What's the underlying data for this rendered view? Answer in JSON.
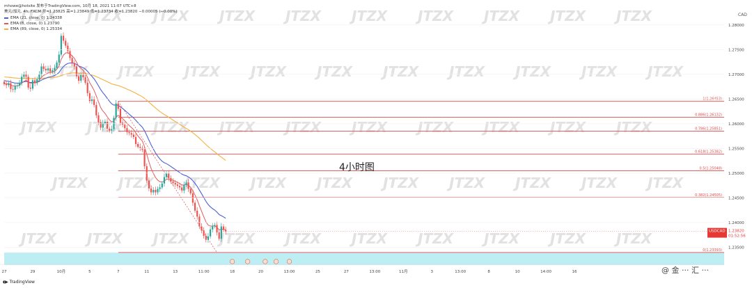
{
  "header": {
    "line1": "mhowe@hotsite 发布于TradingView.com, 10月 18, 2021 11:07 UTC+8",
    "line2": "美元/加元, 4h, FXCM 开=1.23825 高=1.23849 低=1.23734 收=1.23820 −0.00005 (−0.00%)",
    "ema21": "EMA (21, close, 0) 1.24338",
    "ema8": "EMA (8, close, 0) 1.23790",
    "ema89": "EMA (89, close, 0) 1.25334"
  },
  "colors": {
    "up": "#26a69a",
    "down": "#ef5350",
    "ema21": "#4a5fd8",
    "ema8": "#e05a5a",
    "ema89": "#f5b041",
    "fib": "#e04848",
    "band": "#bdeef3",
    "watermark": "#e2e2e2"
  },
  "chart_data": {
    "type": "candlestick",
    "annotation": "4小时图",
    "symbol_tag": "USDCAD",
    "last_price": "1.23820",
    "countdown": "01:52:56",
    "currency": "CAD",
    "ylim": [
      1.2335,
      1.2842
    ],
    "y_ticks": [
      1.28,
      1.275,
      1.27,
      1.265,
      1.26,
      1.255,
      1.25,
      1.245,
      1.24,
      1.235
    ],
    "y_tick_labels": [
      "1.28000",
      "1.27500",
      "1.27000",
      "1.26500",
      "1.26000",
      "1.25500",
      "1.25000",
      "1.24500",
      "1.24000",
      "1.23500"
    ],
    "x_labels": [
      {
        "i": 0,
        "label": "27"
      },
      {
        "i": 13,
        "label": "29"
      },
      {
        "i": 26,
        "label": "10月"
      },
      {
        "i": 39,
        "label": "5"
      },
      {
        "i": 52,
        "label": "7"
      },
      {
        "i": 65,
        "label": "11"
      },
      {
        "i": 78,
        "label": "13"
      },
      {
        "i": 91,
        "label": "11:00"
      },
      {
        "i": 104,
        "label": "18"
      },
      {
        "i": 117,
        "label": "20"
      },
      {
        "i": 130,
        "label": "13:00"
      },
      {
        "i": 143,
        "label": "25"
      },
      {
        "i": 156,
        "label": "27"
      },
      {
        "i": 169,
        "label": "13:00"
      },
      {
        "i": 182,
        "label": "11月"
      },
      {
        "i": 195,
        "label": "3"
      },
      {
        "i": 208,
        "label": "13:00"
      },
      {
        "i": 221,
        "label": "8"
      },
      {
        "i": 234,
        "label": "10"
      },
      {
        "i": 247,
        "label": "14:00"
      },
      {
        "i": 260,
        "label": "16"
      }
    ],
    "fib_levels": [
      {
        "level": "1",
        "price": 1.26453,
        "label": "1(1.26453)"
      },
      {
        "level": "0.886",
        "price": 1.26132,
        "label": "0.886(1.26132)"
      },
      {
        "level": "0.786",
        "price": 1.25851,
        "label": "0.786(1.25851)"
      },
      {
        "level": "0.618",
        "price": 1.25382,
        "label": "0.618(1.25382)"
      },
      {
        "level": "0.5",
        "price": 1.25048,
        "label": "0.5(1.25048)"
      },
      {
        "level": "0.382",
        "price": 1.24505,
        "label": "0.382(1.24505)"
      },
      {
        "level": "0",
        "price": 1.23393,
        "label": "0(1.23393)"
      }
    ],
    "fib_start_index": 52,
    "highlight_band": [
      1.2314,
      1.2339
    ],
    "events": [
      104,
      111,
      119,
      124,
      130
    ],
    "close": [
      1.268,
      1.2678,
      1.2682,
      1.267,
      1.2669,
      1.2676,
      1.2677,
      1.2683,
      1.2695,
      1.27,
      1.2695,
      1.2673,
      1.2671,
      1.2688,
      1.2682,
      1.269,
      1.27,
      1.2716,
      1.2711,
      1.2708,
      1.2712,
      1.2705,
      1.2708,
      1.2713,
      1.2724,
      1.274,
      1.2778,
      1.2768,
      1.2758,
      1.2747,
      1.2733,
      1.2722,
      1.2716,
      1.2696,
      1.2687,
      1.2699,
      1.2694,
      1.2683,
      1.2662,
      1.2646,
      1.265,
      1.2638,
      1.2617,
      1.2603,
      1.2592,
      1.2601,
      1.2604,
      1.259,
      1.2586,
      1.2589,
      1.2612,
      1.2641,
      1.263,
      1.2602,
      1.2598,
      1.2591,
      1.2583,
      1.2581,
      1.2578,
      1.2573,
      1.2559,
      1.2553,
      1.2551,
      1.2547,
      1.2514,
      1.2485,
      1.2469,
      1.2461,
      1.2466,
      1.2461,
      1.2468,
      1.2471,
      1.2479,
      1.2492,
      1.2499,
      1.249,
      1.2483,
      1.248,
      1.2477,
      1.2474,
      1.2471,
      1.2465,
      1.2476,
      1.2481,
      1.2468,
      1.2459,
      1.244,
      1.2424,
      1.2412,
      1.2392,
      1.2384,
      1.2373,
      1.2365,
      1.2372,
      1.2386,
      1.2392,
      1.2395,
      1.238,
      1.2367,
      1.2392,
      1.2385,
      1.2382
    ]
  }
}
